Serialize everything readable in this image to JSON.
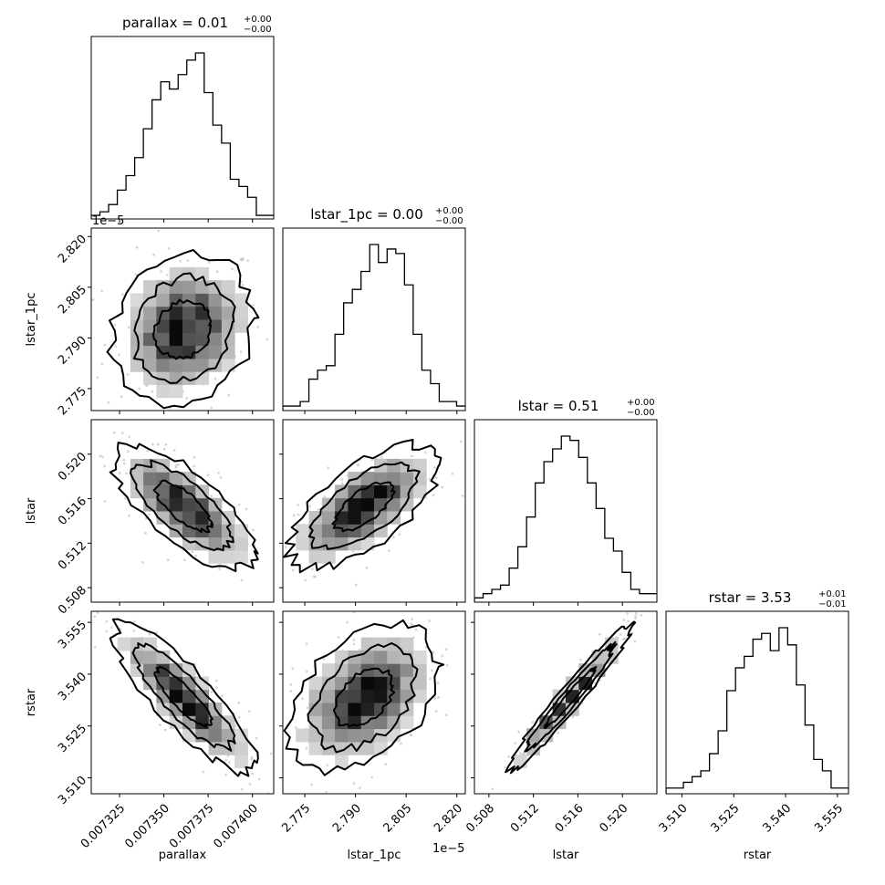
{
  "chart_data": {
    "type": "corner",
    "parameters": [
      "parallax",
      "lstar_1pc",
      "lstar",
      "rstar"
    ],
    "offset_labels": {
      "x_lstar_1pc": "1e−5",
      "y_lstar_1pc": "1e−5"
    },
    "titles": [
      {
        "param": "parallax",
        "name": "parallax",
        "value": "0.01",
        "plus": "+0.00",
        "minus": "−0.00"
      },
      {
        "param": "lstar_1pc",
        "name": "lstar_1pc",
        "value": "0.00",
        "plus": "+0.00",
        "minus": "−0.00"
      },
      {
        "param": "lstar",
        "name": "lstar",
        "value": "0.51",
        "plus": "+0.00",
        "minus": "−0.00"
      },
      {
        "param": "rstar",
        "name": "rstar",
        "value": "3.53",
        "plus": "+0.01",
        "minus": "−0.01"
      }
    ],
    "axes": {
      "parallax": {
        "range": [
          0.007309,
          0.007412
        ],
        "ticks": [
          0.007325,
          0.00735,
          0.007375,
          0.0074
        ],
        "tick_labels": [
          "0.007325",
          "0.007350",
          "0.007375",
          "0.007400"
        ]
      },
      "lstar_1pc": {
        "range": [
          2.7685,
          2.8225
        ],
        "ticks": [
          2.775,
          2.79,
          2.805,
          2.82
        ],
        "tick_labels": [
          "2.775",
          "2.790",
          "2.805",
          "2.820"
        ]
      },
      "lstar": {
        "range": [
          0.5067,
          0.5231
        ],
        "ticks": [
          0.508,
          0.512,
          0.516,
          0.52
        ],
        "tick_labels": [
          "0.508",
          "0.512",
          "0.516",
          "0.520"
        ]
      },
      "rstar": {
        "range": [
          3.5054,
          3.5582
        ],
        "ticks": [
          3.51,
          3.525,
          3.54,
          3.555
        ],
        "tick_labels": [
          "3.510",
          "3.525",
          "3.540",
          "3.555"
        ]
      }
    },
    "histograms": {
      "parallax": [
        1,
        2,
        4,
        8,
        12,
        17,
        25,
        33,
        38,
        36,
        40,
        44,
        46,
        35,
        26,
        21,
        11,
        9,
        6,
        1,
        1
      ],
      "lstar_1pc": [
        1,
        1,
        2,
        7,
        9,
        10,
        17,
        24,
        27,
        31,
        37,
        33,
        36,
        35,
        28,
        17,
        9,
        6,
        2,
        2,
        1
      ],
      "lstar": [
        1,
        2,
        3,
        4,
        8,
        13,
        20,
        28,
        33,
        36,
        39,
        38,
        34,
        28,
        22,
        15,
        12,
        7,
        3,
        2,
        2
      ],
      "rstar": [
        1,
        1,
        2,
        3,
        4,
        7,
        11,
        18,
        22,
        24,
        27,
        28,
        25,
        29,
        26,
        19,
        12,
        6,
        4,
        1,
        1
      ]
    },
    "pairs": [
      {
        "x": "parallax",
        "y": "lstar_1pc",
        "mean": [
          0.007361,
          2.7925
        ],
        "sigma": [
          1.65e-05,
          0.0091
        ],
        "rho": 0.15
      },
      {
        "x": "parallax",
        "y": "lstar",
        "mean": [
          0.007361,
          0.5153
        ],
        "sigma": [
          1.65e-05,
          0.0023
        ],
        "rho": -0.72
      },
      {
        "x": "lstar_1pc",
        "y": "lstar",
        "mean": [
          2.7925,
          0.5153
        ],
        "sigma": [
          0.0091,
          0.0023
        ],
        "rho": 0.66
      },
      {
        "x": "parallax",
        "y": "rstar",
        "mean": [
          0.007361,
          3.5332
        ],
        "sigma": [
          1.65e-05,
          0.0088
        ],
        "rho": -0.85
      },
      {
        "x": "lstar_1pc",
        "y": "rstar",
        "mean": [
          2.7925,
          3.5332
        ],
        "sigma": [
          0.0091,
          0.0088
        ],
        "rho": 0.42
      },
      {
        "x": "lstar",
        "y": "rstar",
        "mean": [
          0.5153,
          3.5332
        ],
        "sigma": [
          0.0023,
          0.0088
        ],
        "rho": 0.97
      }
    ]
  }
}
